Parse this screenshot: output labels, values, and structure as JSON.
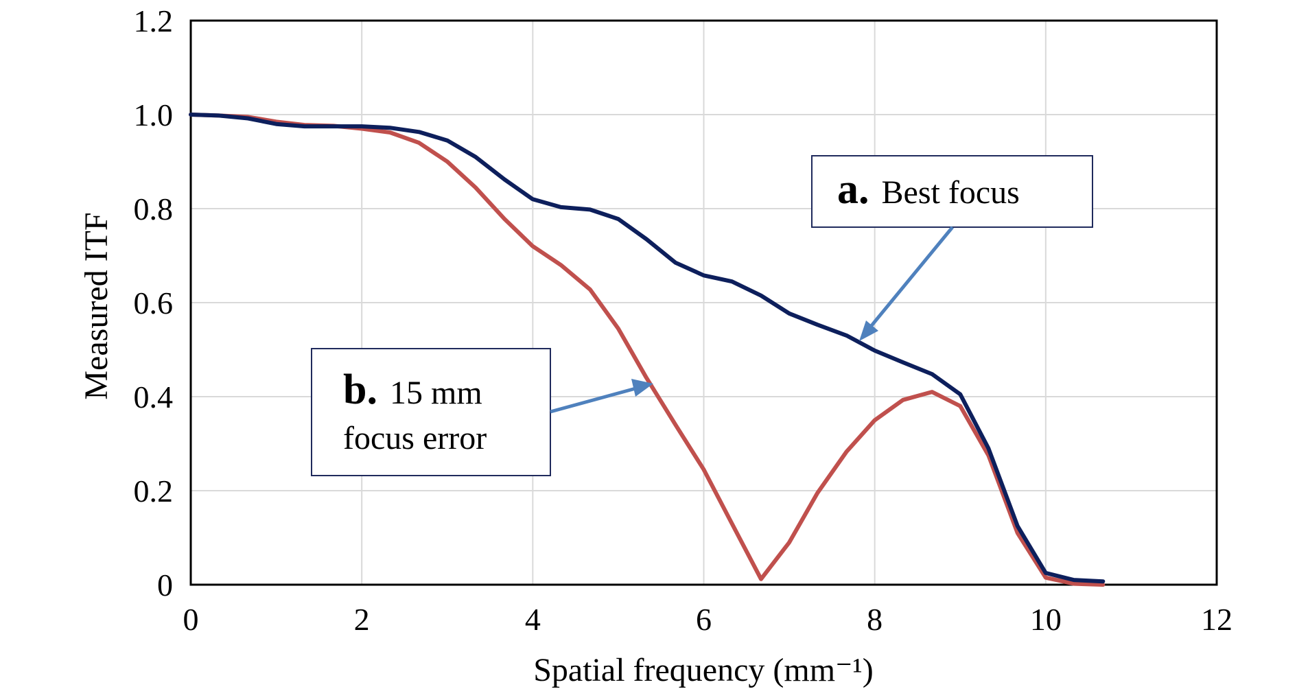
{
  "chart_data": {
    "type": "line",
    "xlabel": "Spatial frequency (mm⁻¹)",
    "ylabel": "Measured ITF",
    "xlim": [
      0,
      12
    ],
    "ylim": [
      0,
      1.2
    ],
    "x_ticks": [
      0,
      2,
      4,
      6,
      8,
      10,
      12
    ],
    "y_ticks": [
      0,
      0.2,
      0.4,
      0.6,
      0.8,
      1.0,
      1.2
    ],
    "x_tick_labels": [
      "0",
      "2",
      "4",
      "6",
      "8",
      "10",
      "12"
    ],
    "y_tick_labels": [
      "0",
      "0.2",
      "0.4",
      "0.6",
      "0.8",
      "1.0",
      "1.2"
    ],
    "grid": true,
    "series": [
      {
        "color": "#0d1f5c",
        "x": [
          0,
          0.33,
          0.67,
          1.0,
          1.33,
          1.67,
          2.0,
          2.33,
          2.67,
          3.0,
          3.33,
          3.67,
          4.0,
          4.33,
          4.67,
          5.0,
          5.33,
          5.67,
          6.0,
          6.33,
          6.67,
          7.0,
          7.33,
          7.67,
          8.0,
          8.33,
          8.67,
          9.0,
          9.33,
          9.67,
          10.0,
          10.33,
          10.67
        ],
        "y": [
          1.0,
          0.998,
          0.992,
          0.98,
          0.975,
          0.975,
          0.975,
          0.972,
          0.963,
          0.945,
          0.91,
          0.862,
          0.82,
          0.803,
          0.798,
          0.778,
          0.735,
          0.685,
          0.658,
          0.645,
          0.615,
          0.577,
          0.553,
          0.53,
          0.498,
          0.473,
          0.448,
          0.405,
          0.29,
          0.125,
          0.025,
          0.01,
          0.007
        ]
      },
      {
        "color": "#c0504d",
        "x": [
          0,
          0.33,
          0.67,
          1.0,
          1.33,
          1.67,
          2.0,
          2.33,
          2.67,
          3.0,
          3.33,
          3.67,
          4.0,
          4.33,
          4.67,
          5.0,
          5.33,
          5.67,
          6.0,
          6.33,
          6.67,
          7.0,
          7.33,
          7.67,
          8.0,
          8.33,
          8.67,
          9.0,
          9.33,
          9.67,
          10.0,
          10.33,
          10.67
        ],
        "y": [
          1.0,
          0.998,
          0.995,
          0.985,
          0.978,
          0.976,
          0.97,
          0.962,
          0.94,
          0.9,
          0.845,
          0.778,
          0.72,
          0.68,
          0.628,
          0.545,
          0.44,
          0.34,
          0.245,
          0.13,
          0.012,
          0.09,
          0.195,
          0.283,
          0.35,
          0.393,
          0.41,
          0.38,
          0.275,
          0.11,
          0.015,
          0.002,
          0.0
        ]
      }
    ],
    "annotations": [
      {
        "letter": "a.",
        "text_lines": [
          "Best focus"
        ]
      },
      {
        "letter": "b.",
        "text_lines": [
          "15 mm",
          "focus error"
        ]
      }
    ],
    "annotation_color": "#1f2a5c",
    "arrow_color": "#4f81bd",
    "grid_color": "#d9d9d9"
  }
}
